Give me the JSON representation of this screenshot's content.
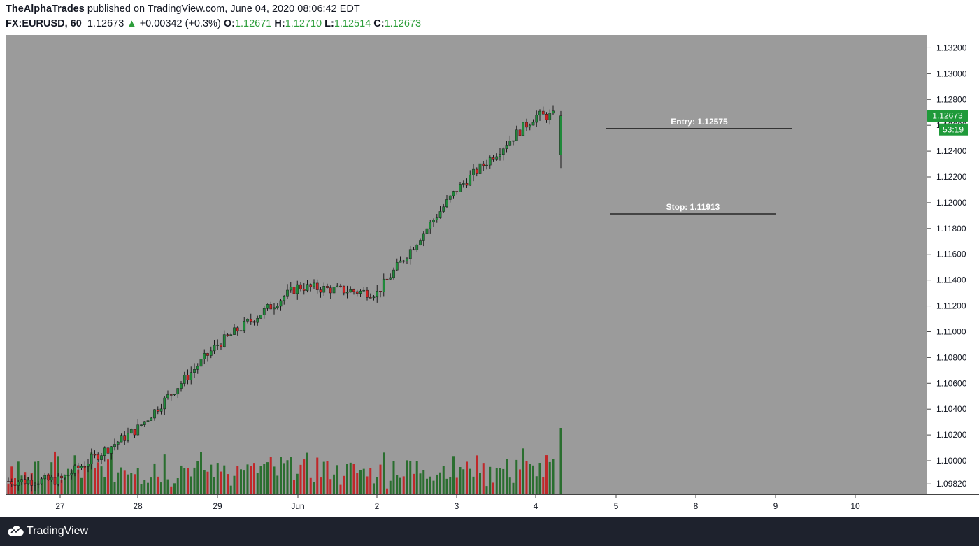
{
  "header": {
    "author": "TheAlphaTrades",
    "published_text": "published on TradingView.com, June 04, 2020 08:06:42 EDT",
    "symbol": "FX:EURUSD, 60",
    "last_price": "1.12673",
    "change_arrow": "▲",
    "change": "+0.00342 (+0.3%)",
    "open_label": "O:",
    "open": "1.12671",
    "high_label": "H:",
    "high": "1.12710",
    "low_label": "L:",
    "low": "1.12514",
    "close_label": "C:",
    "close": "1.12673"
  },
  "colors": {
    "chart_bg": "#9b9b9b",
    "up_candle": "#1f8a3a",
    "down_candle": "#d21f1f",
    "up_volume": "#2a6e2f",
    "down_volume": "#c0282a",
    "price_badge": "#1f9a3a"
  },
  "price_axis": {
    "labels": [
      "1.13200",
      "1.13000",
      "1.12800",
      "1.12600",
      "1.12400",
      "1.12200",
      "1.12000",
      "1.11800",
      "1.11600",
      "1.11400",
      "1.11200",
      "1.11000",
      "1.10800",
      "1.10600",
      "1.10400",
      "1.10200",
      "1.10000",
      "1.09820"
    ],
    "current_price_badge": "1.12673",
    "countdown_badge": "53:19"
  },
  "time_axis": {
    "labels": [
      "27",
      "28",
      "29",
      "Jun",
      "2",
      "3",
      "4",
      "5",
      "8",
      "9",
      "10"
    ]
  },
  "annotations": {
    "entry_label": "Entry: 1.12575",
    "stop_label": "Stop: 1.11913"
  },
  "footer": {
    "brand": "TradingView",
    "logo_icon": "tradingview-cloud-icon"
  },
  "chart_data": {
    "type": "candlestick",
    "symbol": "FX:EURUSD",
    "interval": "60",
    "x": [
      "27",
      "28",
      "29",
      "Jun",
      "2",
      "3",
      "4"
    ],
    "series": [
      {
        "name": "EURUSD",
        "close_by_session": [
          1.0985,
          1.1025,
          1.109,
          1.1135,
          1.113,
          1.121,
          1.12673
        ]
      }
    ],
    "last_candle": {
      "open": 1.12671,
      "high": 1.1271,
      "low": 1.12514,
      "close": 1.12673
    },
    "lines": [
      {
        "label": "Entry: 1.12575",
        "value": 1.12575
      },
      {
        "label": "Stop: 1.11913",
        "value": 1.11913
      }
    ],
    "ylim": [
      1.0974,
      1.133
    ],
    "grid": false,
    "volume": true
  }
}
